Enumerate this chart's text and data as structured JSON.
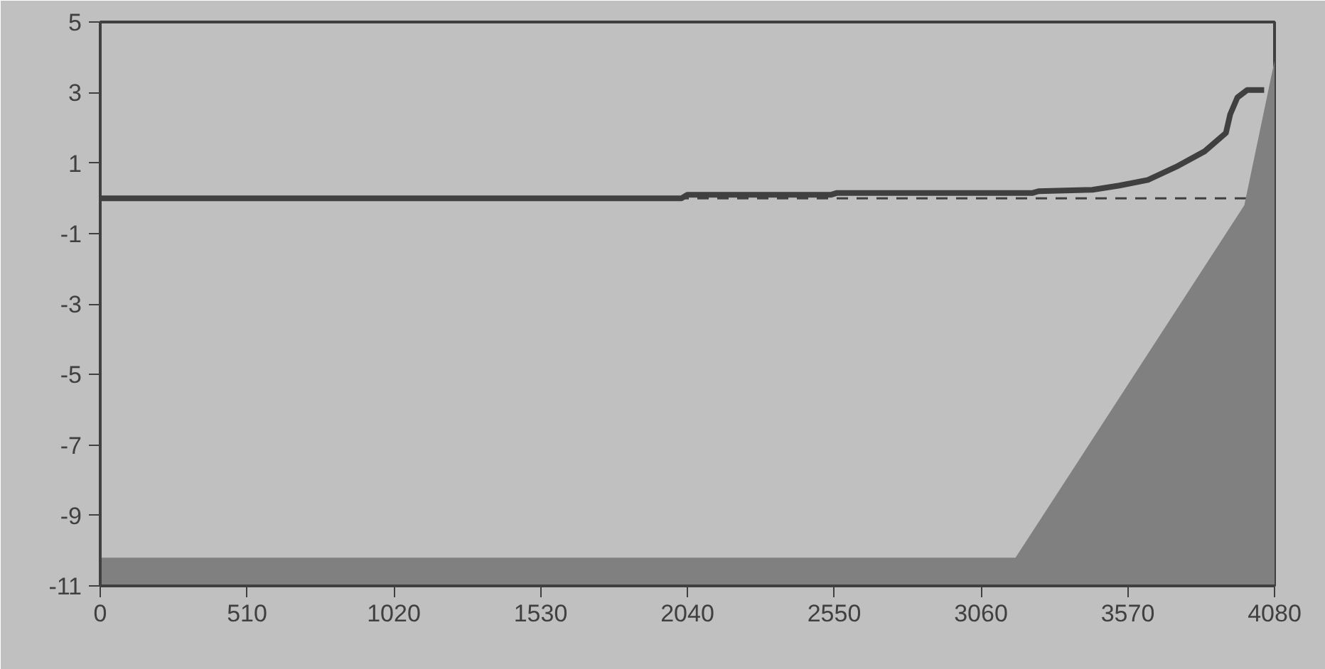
{
  "chart_data": {
    "type": "area",
    "xlim": [
      0,
      4080
    ],
    "xticks": [
      0,
      510,
      1020,
      1530,
      2040,
      2550,
      3060,
      3570,
      4080
    ],
    "ylim": [
      -11,
      5
    ],
    "yticks": [
      -11,
      -9,
      -7,
      -5,
      -3,
      -1,
      1,
      3,
      5
    ],
    "grid": false,
    "ref_lines": [
      {
        "axis": "y",
        "value": 0,
        "color": "#404040",
        "line_style": "dashed"
      }
    ],
    "series": [
      {
        "color": "#808080",
        "x": [
          0,
          0,
          3180,
          3975,
          4080,
          4080
        ],
        "values": [
          -11,
          -10.2,
          -10.2,
          -0.2,
          3.9,
          -11
        ]
      },
      {
        "type": "line",
        "color": "#404040",
        "x": [
          0,
          2020,
          2040,
          2540,
          2560,
          3240,
          3260,
          3447,
          3541,
          3640,
          3738,
          3837,
          3911,
          3926,
          3951,
          3985,
          4044
        ],
        "values": [
          0,
          0,
          0.1,
          0.1,
          0.15,
          0.15,
          0.2,
          0.24,
          0.36,
          0.52,
          0.89,
          1.33,
          1.85,
          2.38,
          2.86,
          3.07,
          3.07
        ]
      }
    ]
  }
}
